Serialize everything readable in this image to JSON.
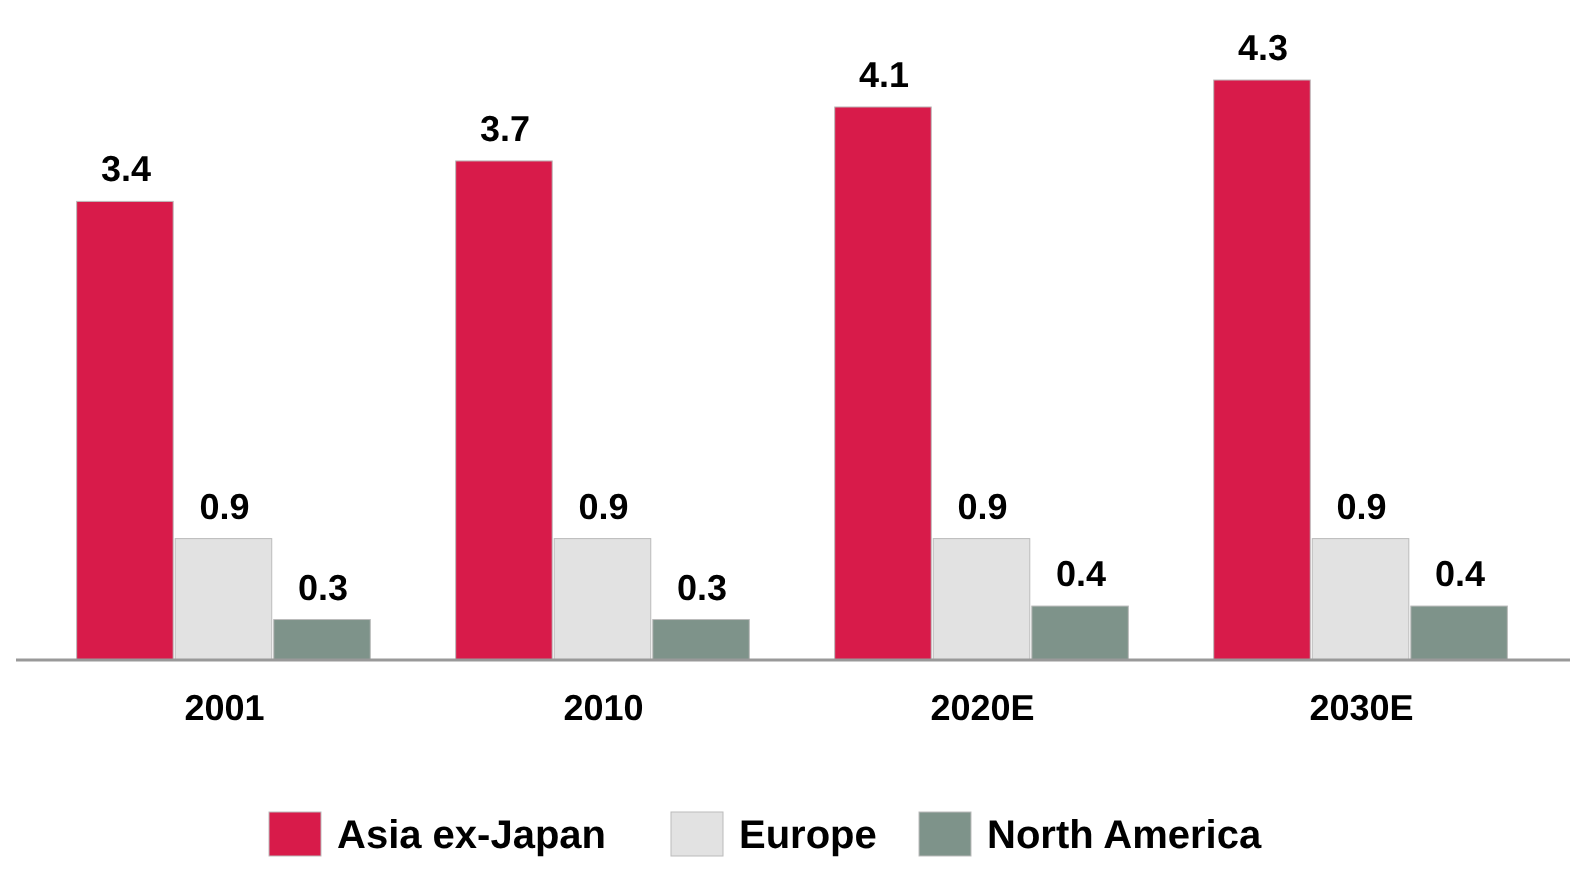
{
  "chart_data": {
    "type": "bar",
    "categories": [
      "2001",
      "2010",
      "2020E",
      "2030E"
    ],
    "series": [
      {
        "name": "Asia ex-Japan",
        "color": "#d81b4a",
        "values": [
          3.4,
          3.7,
          4.1,
          4.3
        ]
      },
      {
        "name": "Europe",
        "color": "#e2e2e2",
        "values": [
          0.9,
          0.9,
          0.9,
          0.9
        ]
      },
      {
        "name": "North America",
        "color": "#7e938a",
        "values": [
          0.3,
          0.3,
          0.4,
          0.4
        ]
      }
    ],
    "data_labels": true,
    "legend": "bottom"
  }
}
